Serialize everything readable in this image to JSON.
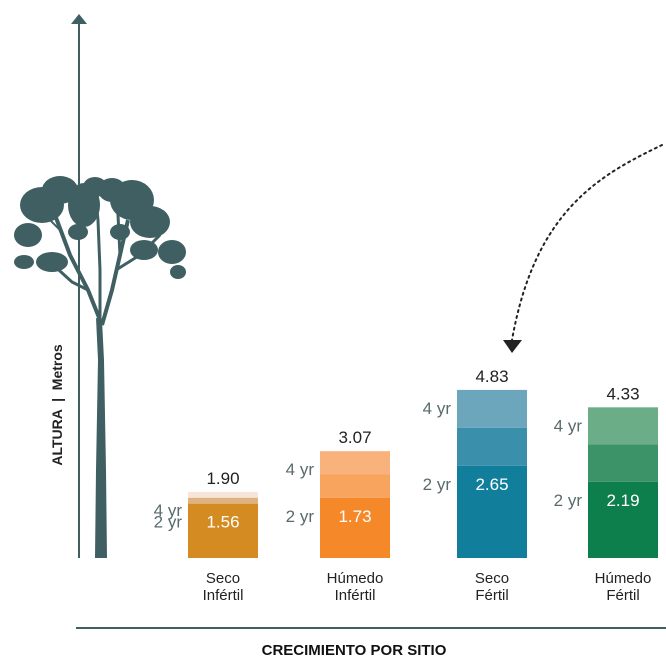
{
  "chart_data": {
    "type": "bar",
    "xlabel": "CRECIMIENTO POR SITIO",
    "ylabel": "ALTURA  |  Metros",
    "year_labels": [
      "2 yr",
      "4 yr"
    ],
    "categories": [
      {
        "line1": "Seco",
        "line2": "Infértil"
      },
      {
        "line1": "Húmedo",
        "line2": "Infértil"
      },
      {
        "line1": "Seco",
        "line2": "Fértil"
      },
      {
        "line1": "Húmedo",
        "line2": "Fértil"
      }
    ],
    "series": [
      {
        "name": "2 yr",
        "values": [
          1.56,
          1.73,
          2.65,
          2.19
        ]
      },
      {
        "name": "4 yr",
        "values": [
          1.9,
          3.07,
          4.83,
          4.33
        ]
      }
    ],
    "value_labels_2yr": [
      "1.56",
      "1.73",
      "2.65",
      "2.19"
    ],
    "value_labels_4yr": [
      "1.90",
      "3.07",
      "4.83",
      "4.33"
    ],
    "colors": [
      {
        "base": "#d48c22",
        "mid": "#ddb382",
        "top": "#f6e5d8"
      },
      {
        "base": "#f5892a",
        "mid": "#f8a35e",
        "top": "#fab27c"
      },
      {
        "base": "#117e9b",
        "mid": "#3a8fab",
        "top": "#6ca6bd"
      },
      {
        "base": "#0d7f4d",
        "mid": "#3c9368",
        "top": "#6aad87"
      }
    ],
    "ylim": [
      0,
      5
    ]
  },
  "colors": {
    "tree": "#3f5f62",
    "axis": "#3f5f62",
    "year_label": "#5a6b6c",
    "text": "#222222"
  },
  "icons": {
    "tree": "tree-icon",
    "arrow": "curved-dotted-arrow-icon"
  }
}
